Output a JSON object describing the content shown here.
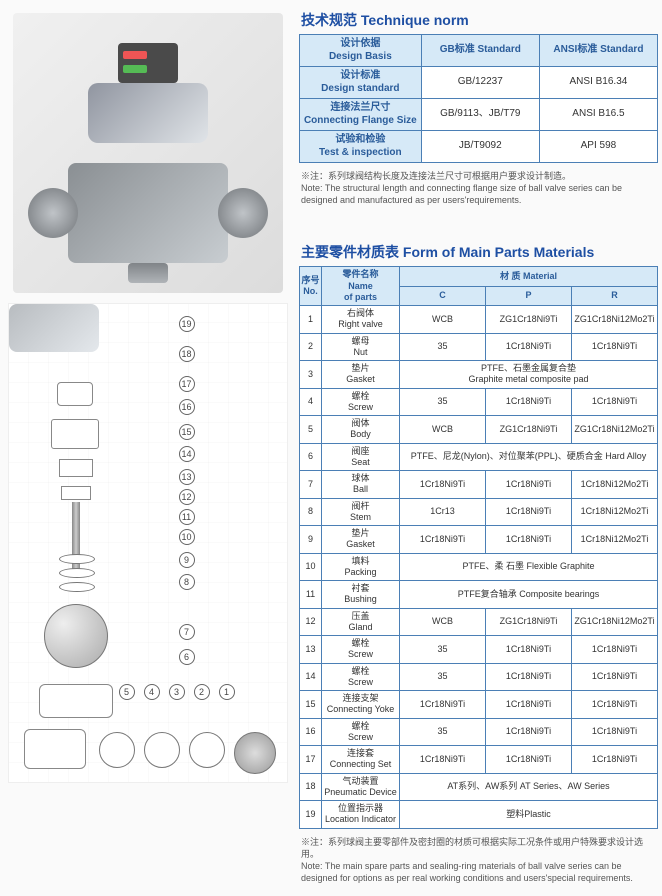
{
  "technique": {
    "title_cn": "技术规范",
    "title_en": "Technique norm",
    "header_c1": "",
    "header_c2": "GB标准 Standard",
    "header_c3": "ANSI标准 Standard",
    "rows": [
      {
        "label_cn": "设计依据",
        "label_en": "Design Basis",
        "gb": "GB标准 Standard",
        "ansi": "ANSI标准 Standard"
      },
      {
        "label_cn": "设计标准",
        "label_en": "Design standard",
        "gb": "GB/12237",
        "ansi": "ANSI B16.34"
      },
      {
        "label_cn": "连接法兰尺寸",
        "label_en": "Connecting Flange Size",
        "gb": "GB/9113、JB/T79",
        "ansi": "ANSI B16.5"
      },
      {
        "label_cn": "试验和检验",
        "label_en": "Test & inspection",
        "gb": "JB/T9092",
        "ansi": "API 598"
      }
    ],
    "note_cn": "※注：系列球阀结构长度及连接法兰尺寸可根据用户要求设计制造。",
    "note_en": "Note: The structural length and connecting flange size of ball valve series can be designed and manufactured as per users'requirements."
  },
  "parts": {
    "title_cn": "主要零件材质表",
    "title_en": "Form of Main Parts Materials",
    "h_no_cn": "序号",
    "h_no_en": "No.",
    "h_name_cn": "零件名称",
    "h_name_en": "Name",
    "h_name_en2": "of parts",
    "h_mat_cn": "材 质",
    "h_mat_en": "Material",
    "h_c": "C",
    "h_p": "P",
    "h_r": "R",
    "rows": [
      {
        "no": "1",
        "name_cn": "右阀体",
        "name_en": "Right valve",
        "c": "WCB",
        "p": "ZG1Cr18Ni9Ti",
        "r": "ZG1Cr18Ni12Mo2Ti"
      },
      {
        "no": "2",
        "name_cn": "螺母",
        "name_en": "Nut",
        "c": "35",
        "p": "1Cr18Ni9Ti",
        "r": "1Cr18Ni9Ti"
      },
      {
        "no": "3",
        "name_cn": "垫片",
        "name_en": "Gasket",
        "merged": "PTFE、石墨金属复合垫\nGraphite metal composite pad"
      },
      {
        "no": "4",
        "name_cn": "螺栓",
        "name_en": "Screw",
        "c": "35",
        "p": "1Cr18Ni9Ti",
        "r": "1Cr18Ni9Ti"
      },
      {
        "no": "5",
        "name_cn": "阀体",
        "name_en": "Body",
        "c": "WCB",
        "p": "ZG1Cr18Ni9Ti",
        "r": "ZG1Cr18Ni12Mo2Ti"
      },
      {
        "no": "6",
        "name_cn": "阀座",
        "name_en": "Seat",
        "merged": "PTFE、尼龙(Nylon)、对位聚苯(PPL)、硬质合金 Hard Alloy"
      },
      {
        "no": "7",
        "name_cn": "球体",
        "name_en": "Ball",
        "c": "1Cr18Ni9Ti",
        "p": "1Cr18Ni9Ti",
        "r": "1Cr18Ni12Mo2Ti"
      },
      {
        "no": "8",
        "name_cn": "阀杆",
        "name_en": "Stem",
        "c": "1Cr13",
        "p": "1Cr18Ni9Ti",
        "r": "1Cr18Ni12Mo2Ti"
      },
      {
        "no": "9",
        "name_cn": "垫片",
        "name_en": "Gasket",
        "c": "1Cr18Ni9Ti",
        "p": "1Cr18Ni9Ti",
        "r": "1Cr18Ni12Mo2Ti"
      },
      {
        "no": "10",
        "name_cn": "填料",
        "name_en": "Packing",
        "merged": "PTFE、柔   石墨 Flexible Graphite"
      },
      {
        "no": "11",
        "name_cn": "衬套",
        "name_en": "Bushing",
        "merged": "PTFE复合轴承 Composite bearings"
      },
      {
        "no": "12",
        "name_cn": "压盖",
        "name_en": "Gland",
        "c": "WCB",
        "p": "ZG1Cr18Ni9Ti",
        "r": "ZG1Cr18Ni12Mo2Ti"
      },
      {
        "no": "13",
        "name_cn": "螺栓",
        "name_en": "Screw",
        "c": "35",
        "p": "1Cr18Ni9Ti",
        "r": "1Cr18Ni9Ti"
      },
      {
        "no": "14",
        "name_cn": "螺栓",
        "name_en": "Screw",
        "c": "35",
        "p": "1Cr18Ni9Ti",
        "r": "1Cr18Ni9Ti"
      },
      {
        "no": "15",
        "name_cn": "连接支架",
        "name_en": "Connecting Yoke",
        "c": "1Cr18Ni9Ti",
        "p": "1Cr18Ni9Ti",
        "r": "1Cr18Ni9Ti"
      },
      {
        "no": "16",
        "name_cn": "螺栓",
        "name_en": "Screw",
        "c": "35",
        "p": "1Cr18Ni9Ti",
        "r": "1Cr18Ni9Ti"
      },
      {
        "no": "17",
        "name_cn": "连接套",
        "name_en": "Connecting Set",
        "c": "1Cr18Ni9Ti",
        "p": "1Cr18Ni9Ti",
        "r": "1Cr18Ni9Ti"
      },
      {
        "no": "18",
        "name_cn": "气动装置",
        "name_en": "Pneumatic Device",
        "merged": "AT系列、AW系列  AT Series、AW Series"
      },
      {
        "no": "19",
        "name_cn": "位置指示器",
        "name_en": "Location Indicator",
        "merged": "塑料Plastic"
      }
    ],
    "note_cn": "※注：系列球阀主要零部件及密封圈的材质可根据实际工况条件或用户特殊要求设计选用。",
    "note_en": "Note: The main spare parts and sealing-ring materials of ball valve series can be designed for options as per real working conditions and users'special requirements."
  },
  "callouts": [
    "1",
    "2",
    "3",
    "4",
    "5",
    "6",
    "7",
    "8",
    "9",
    "10",
    "11",
    "12",
    "13",
    "14",
    "15",
    "16",
    "17",
    "18",
    "19"
  ]
}
